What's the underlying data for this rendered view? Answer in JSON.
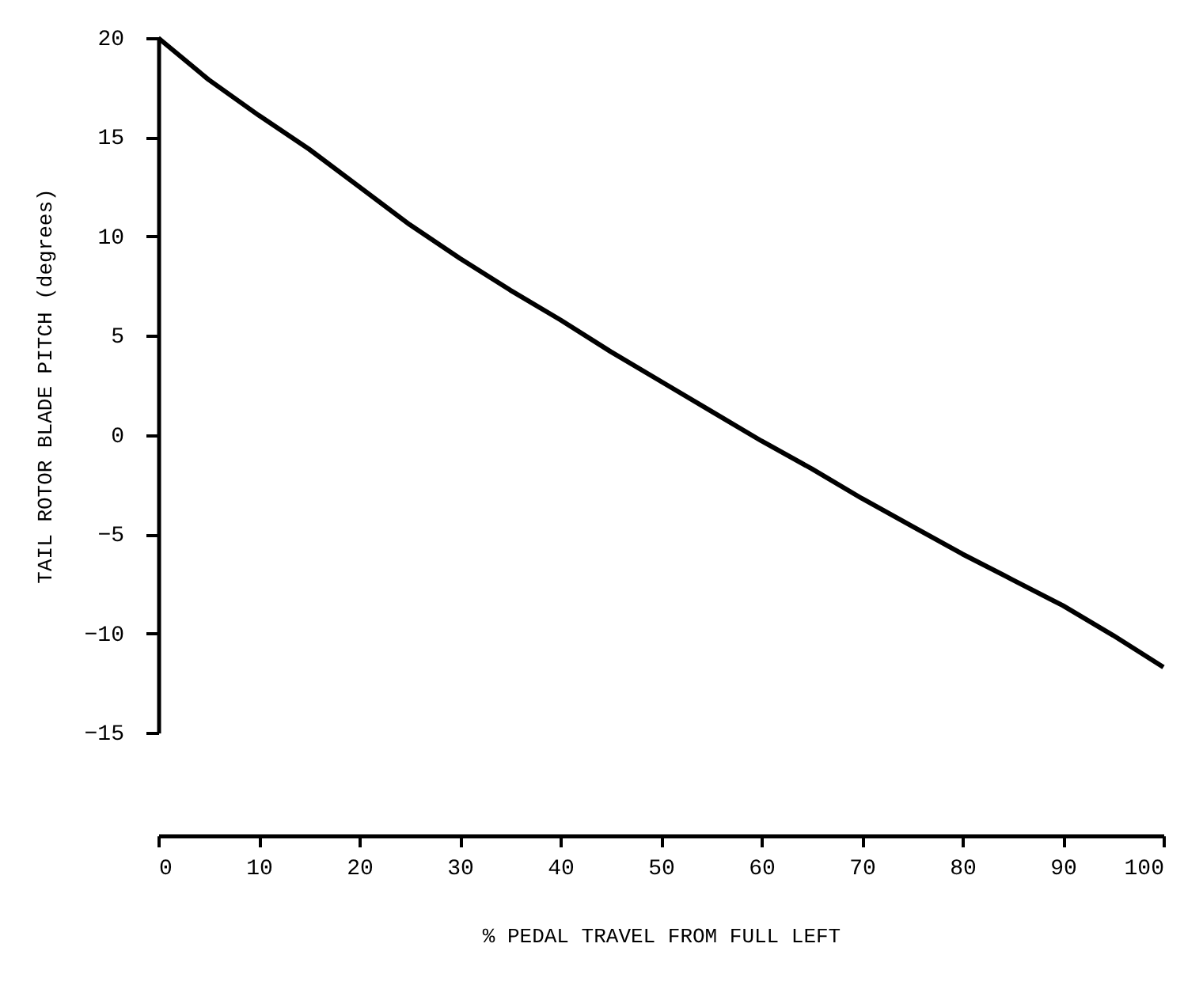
{
  "chart_data": {
    "type": "line",
    "xlabel": "% PEDAL TRAVEL FROM FULL LEFT",
    "ylabel": "TAIL ROTOR BLADE PITCH (degrees)",
    "x": [
      0,
      5,
      10,
      15,
      20,
      25,
      30,
      35,
      40,
      45,
      50,
      55,
      60,
      65,
      70,
      75,
      80,
      85,
      90,
      95,
      100
    ],
    "series": [
      {
        "color": "#000000",
        "values": [
          20,
          17.9,
          16.1,
          14.4,
          12.5,
          10.6,
          8.9,
          7.3,
          5.8,
          4.2,
          2.7,
          1.2,
          -0.3,
          -1.7,
          -3.2,
          -4.6,
          -6.0,
          -7.3,
          -8.6,
          -10.1,
          -11.7
        ]
      }
    ],
    "xlim": [
      0,
      100
    ],
    "xticks": [
      0,
      10,
      20,
      30,
      40,
      50,
      60,
      70,
      80,
      90,
      100
    ],
    "ylim": [
      -15,
      20
    ],
    "yticks": [
      -15,
      -10,
      -5,
      0,
      5,
      10,
      15,
      20
    ],
    "grid": false,
    "legend": false,
    "marker": "none",
    "line_style": "solid"
  }
}
